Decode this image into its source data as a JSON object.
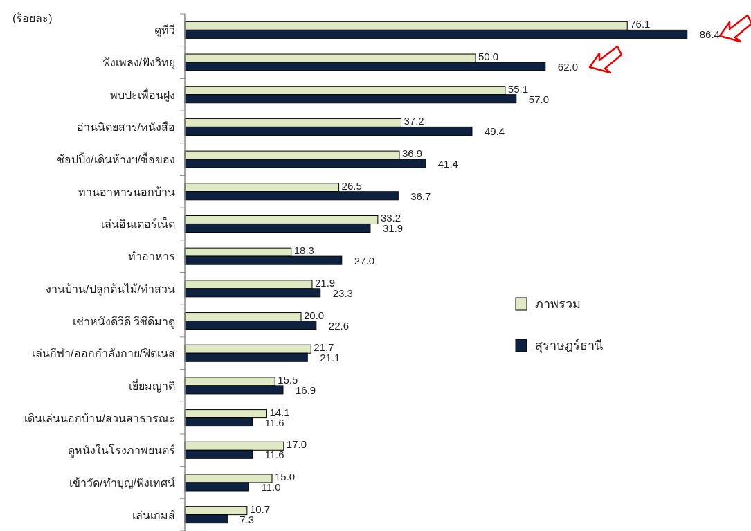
{
  "chart_data": {
    "type": "bar",
    "orientation": "horizontal",
    "legend": "right",
    "annotations": [
      "(ร้อยละ)"
    ],
    "categories": [
      "ดูทีวี",
      "ฟังเพลง/ฟังวิทยุ",
      "พบปะเพื่อนฝูง",
      "อ่านนิตยสาร/หนังสือ",
      "ช้อปปิ้ง/เดินห้างฯ/ซื้อของ",
      "ทานอาหารนอกบ้าน",
      "เล่นอินเตอร์เน็ต",
      "ทำอาหาร",
      "งานบ้าน/ปลูกต้นไม้/ทำสวน",
      "เช่าหนังดีวีดี วีซีดีมาดู",
      "เล่นกีฬา/ออกกำลังกาย/ฟิตเนส",
      "เยี่ยมญาติ",
      "เดินเล่นนอกบ้าน/สวนสาธารณะ",
      "ดูหนังในโรงภาพยนตร์",
      "เข้าวัด/ทำบุญ/ฟังเทศน์",
      "เล่นเกมส์"
    ],
    "series": [
      {
        "name": "ภาพรวม",
        "color": "#dfe9c3",
        "values": [
          76.1,
          50.0,
          55.1,
          37.2,
          36.9,
          26.5,
          33.2,
          18.3,
          21.9,
          20.0,
          21.7,
          15.5,
          14.1,
          17.0,
          15.0,
          10.7
        ],
        "value_labels": [
          "76.1",
          "50.0",
          "55.1",
          "37.2",
          "36.9",
          "26.5",
          "33.2",
          "18.3",
          "21.9",
          "20.0",
          "21.7",
          "15.5",
          "14.1",
          "17.0",
          "15.0",
          "10.7"
        ]
      },
      {
        "name": "สุราษฎร์ธานี",
        "color": "#0e2240",
        "values": [
          86.4,
          62.0,
          57.0,
          49.4,
          41.4,
          36.7,
          31.9,
          27.0,
          23.3,
          22.6,
          21.1,
          16.9,
          11.6,
          11.6,
          11.0,
          7.3
        ],
        "value_labels": [
          "86.4",
          "62.0",
          "57.0",
          "49.4",
          "41.4",
          "36.7",
          "31.9",
          "27.0",
          "23.3",
          "22.6",
          "21.1",
          "16.9",
          "11.6",
          "11.6",
          "11.0",
          "7.3"
        ]
      }
    ]
  }
}
